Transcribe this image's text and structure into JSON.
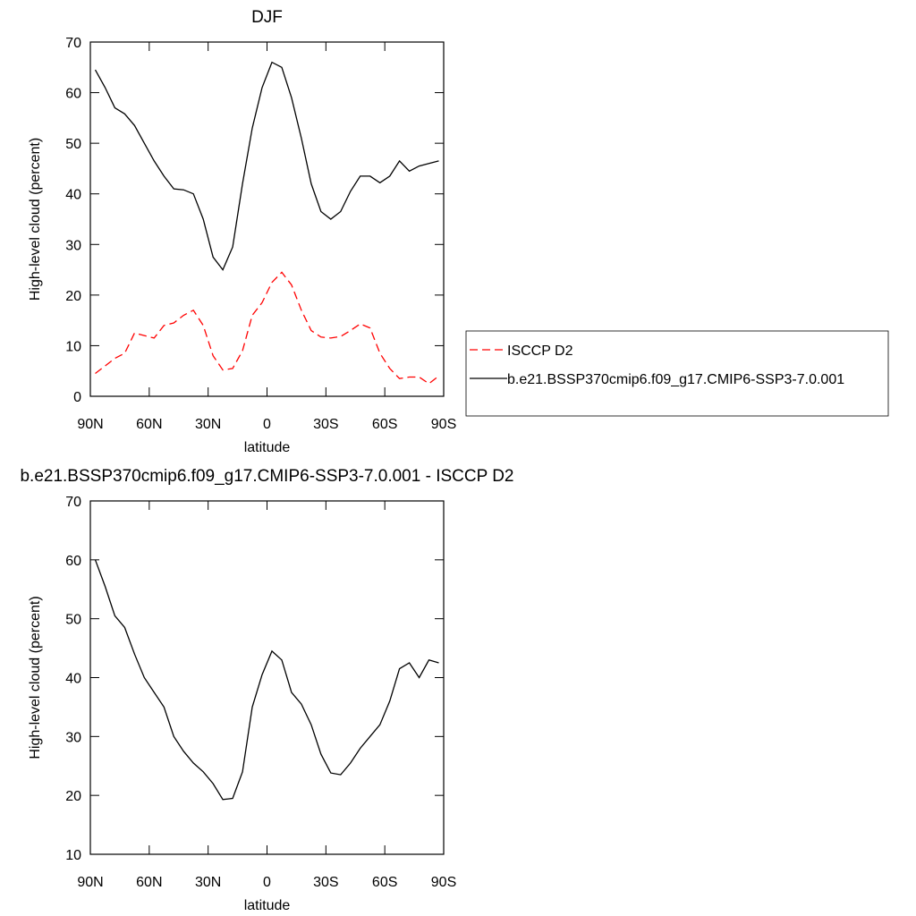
{
  "chart_data": [
    {
      "type": "line",
      "title": "DJF",
      "xlabel": "latitude",
      "ylabel": "High-level cloud (percent)",
      "x": [
        87.5,
        82.5,
        77.5,
        72.5,
        67.5,
        62.5,
        57.5,
        52.5,
        47.5,
        42.5,
        37.5,
        32.5,
        27.5,
        22.5,
        17.5,
        12.5,
        7.5,
        2.5,
        -2.5,
        -7.5,
        -12.5,
        -17.5,
        -22.5,
        -27.5,
        -32.5,
        -37.5,
        -42.5,
        -47.5,
        -52.5,
        -57.5,
        -62.5,
        -67.5,
        -72.5,
        -77.5,
        -82.5,
        -87.5
      ],
      "series": [
        {
          "name": "ISCCP D2",
          "color": "#ff0000",
          "dash": true,
          "values": [
            4.5,
            6,
            7.5,
            8.5,
            12.5,
            12,
            11.5,
            14,
            14.5,
            16,
            17,
            14,
            8,
            5.2,
            5.5,
            9,
            16,
            18.5,
            22.5,
            24.5,
            22,
            17,
            13,
            11.7,
            11.5,
            11.8,
            13,
            14.3,
            13.5,
            8.5,
            5.5,
            3.5,
            3.8,
            3.8,
            2.5,
            4
          ]
        },
        {
          "name": "b.e21.BSSP370cmip6.f09_g17.CMIP6-SSP3-7.0.001",
          "color": "#000000",
          "dash": false,
          "values": [
            64.5,
            61,
            57,
            55.8,
            53.5,
            50,
            46.5,
            43.5,
            41,
            40.8,
            40,
            35,
            27.5,
            25,
            29.5,
            42,
            53,
            61,
            66,
            65,
            59,
            51,
            42,
            36.5,
            35,
            36.5,
            40.5,
            43.5,
            43.5,
            42.2,
            43.5,
            46.5,
            44.5,
            45.5,
            46,
            46.5
          ]
        }
      ],
      "xlim": [
        90,
        -90
      ],
      "xticks": [
        {
          "value": 90,
          "label": "90N"
        },
        {
          "value": 60,
          "label": "60N"
        },
        {
          "value": 30,
          "label": "30N"
        },
        0,
        {
          "value": -30,
          "label": "30S"
        },
        {
          "value": -60,
          "label": "60S"
        },
        {
          "value": -90,
          "label": "90S"
        }
      ],
      "ylim": [
        0,
        70
      ],
      "yticks": [
        0,
        10,
        20,
        30,
        40,
        50,
        60,
        70
      ],
      "legend": "outside-right"
    },
    {
      "type": "line",
      "title": "b.e21.BSSP370cmip6.f09_g17.CMIP6-SSP3-7.0.001 - ISCCP D2",
      "xlabel": "latitude",
      "ylabel": "High-level cloud (percent)",
      "x": [
        87.5,
        82.5,
        77.5,
        72.5,
        67.5,
        62.5,
        57.5,
        52.5,
        47.5,
        42.5,
        37.5,
        32.5,
        27.5,
        22.5,
        17.5,
        12.5,
        7.5,
        2.5,
        -2.5,
        -7.5,
        -12.5,
        -17.5,
        -22.5,
        -27.5,
        -32.5,
        -37.5,
        -42.5,
        -47.5,
        -52.5,
        -57.5,
        -62.5,
        -67.5,
        -72.5,
        -77.5,
        -82.5,
        -87.5
      ],
      "series": [
        {
          "color": "#000000",
          "dash": false,
          "values": [
            60,
            55.5,
            50.5,
            48.5,
            44,
            40,
            37.5,
            35,
            30,
            27.5,
            25.5,
            24,
            22,
            19.3,
            19.5,
            24,
            35,
            40.5,
            44.5,
            43,
            37.5,
            35.5,
            32,
            27,
            23.8,
            23.5,
            25.5,
            28,
            30,
            32,
            36,
            41.5,
            42.5,
            40,
            43,
            42.5
          ]
        }
      ],
      "xlim": [
        90,
        -90
      ],
      "xticks": [
        {
          "value": 90,
          "label": "90N"
        },
        {
          "value": 60,
          "label": "60N"
        },
        {
          "value": 30,
          "label": "30N"
        },
        0,
        {
          "value": -30,
          "label": "30S"
        },
        {
          "value": -60,
          "label": "60S"
        },
        {
          "value": -90,
          "label": "90S"
        }
      ],
      "ylim": [
        10,
        70
      ],
      "yticks": [
        10,
        20,
        30,
        40,
        50,
        60,
        70
      ]
    }
  ]
}
